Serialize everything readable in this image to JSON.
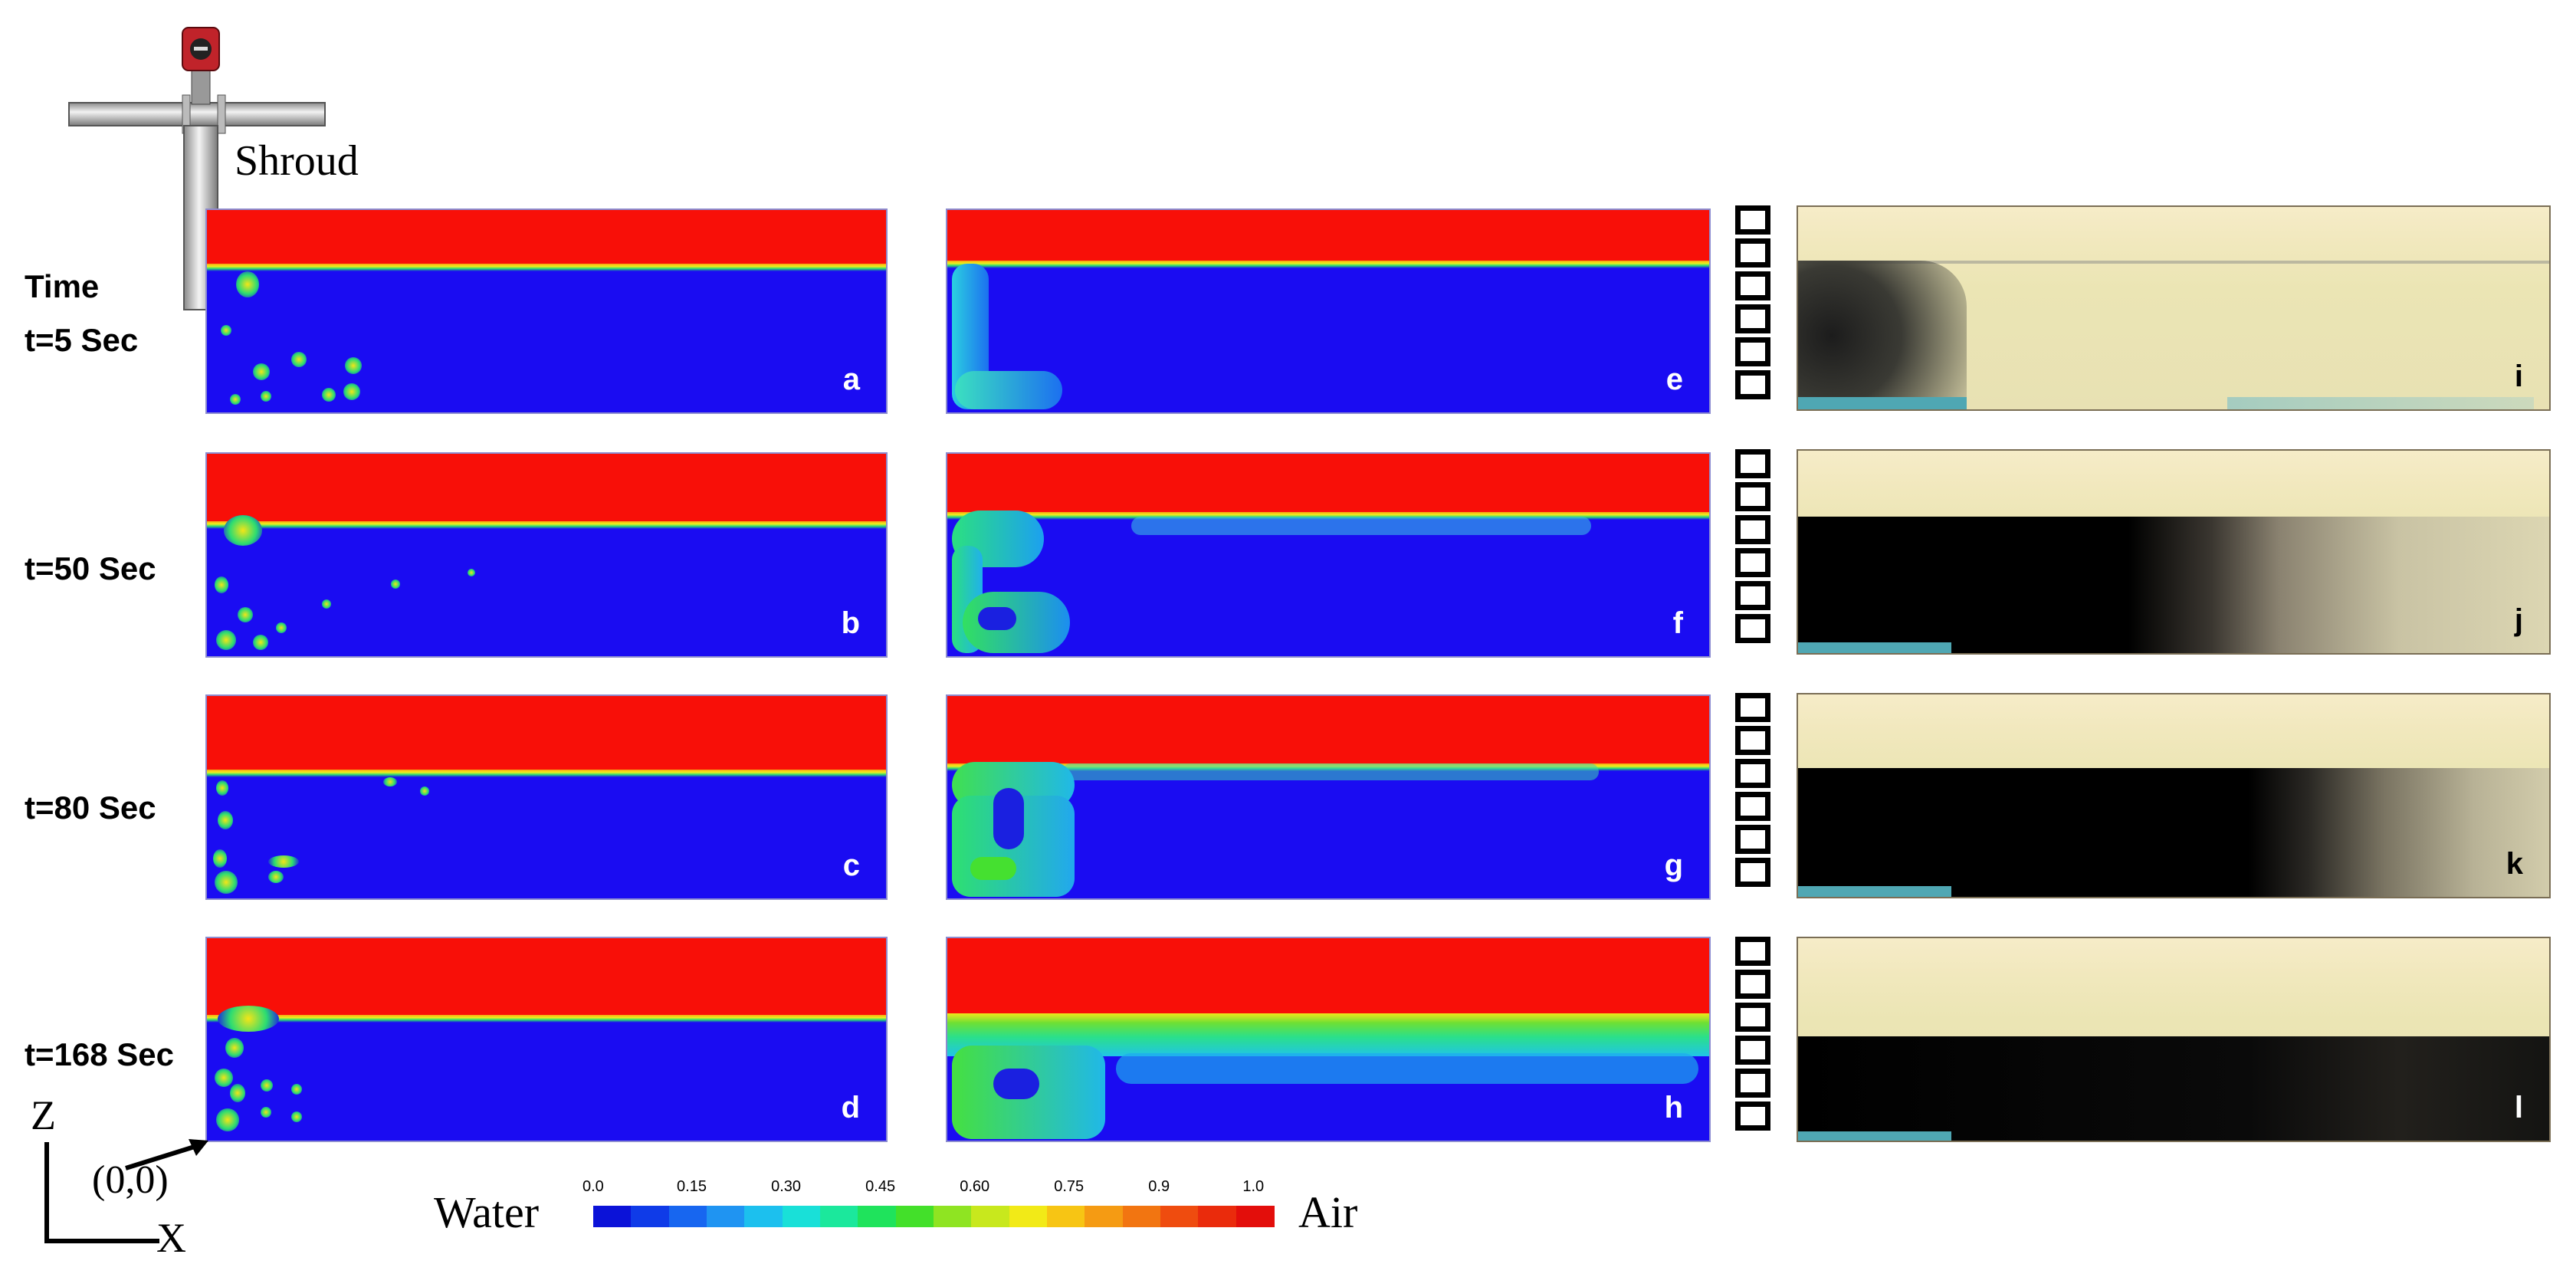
{
  "schematic": {
    "label": "Shroud"
  },
  "time_header": "Time",
  "rows": [
    {
      "time": "t=5 Sec",
      "panels": [
        "a",
        "e",
        "i"
      ]
    },
    {
      "time": "t=50 Sec",
      "panels": [
        "b",
        "f",
        "j"
      ]
    },
    {
      "time": "t=80 Sec",
      "panels": [
        "c",
        "g",
        "k"
      ]
    },
    {
      "time": "t=168 Sec",
      "panels": [
        "d",
        "h",
        "l"
      ]
    }
  ],
  "axes": {
    "z": "Z",
    "x": "X",
    "origin": "(0,0)"
  },
  "colorbar": {
    "left_label": "Water",
    "right_label": "Air",
    "ticks": [
      "0.0",
      "0.15",
      "0.30",
      "0.45",
      "0.60",
      "0.75",
      "0.9",
      "1.0"
    ],
    "colors": [
      "#0b12d8",
      "#0f3be8",
      "#1766f0",
      "#1f94f2",
      "#1cc0ee",
      "#19e0d8",
      "#1be89c",
      "#1fe35c",
      "#43e02a",
      "#8fe422",
      "#c8e81d",
      "#f2ea17",
      "#f7c514",
      "#f59b13",
      "#f27511",
      "#ef4c0f",
      "#ea2b0c",
      "#e30e0b"
    ]
  }
}
